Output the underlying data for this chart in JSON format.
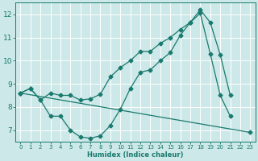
{
  "xlabel": "Humidex (Indice chaleur)",
  "bg_color": "#cce8e8",
  "grid_color": "#ffffff",
  "line_color": "#1a7a6e",
  "xlim": [
    -0.5,
    23.5
  ],
  "ylim": [
    6.5,
    12.5
  ],
  "yticks": [
    7,
    8,
    9,
    10,
    11,
    12
  ],
  "xticks": [
    0,
    1,
    2,
    3,
    4,
    5,
    6,
    7,
    8,
    9,
    10,
    11,
    12,
    13,
    14,
    15,
    16,
    17,
    18,
    19,
    20,
    21,
    22,
    23
  ],
  "line1_x": [
    0,
    1,
    2,
    3,
    4,
    5,
    6,
    7,
    8,
    9,
    10,
    11,
    12,
    13,
    14,
    15,
    16,
    17,
    18,
    19,
    20,
    21
  ],
  "line1_y": [
    8.6,
    8.8,
    8.3,
    7.6,
    7.6,
    7.0,
    6.7,
    6.65,
    6.75,
    7.2,
    7.9,
    8.8,
    9.5,
    9.6,
    10.0,
    10.35,
    11.1,
    11.65,
    12.05,
    10.3,
    8.5,
    7.6
  ],
  "line2_x": [
    0,
    1,
    2,
    3,
    4,
    5,
    6,
    7,
    8,
    9,
    10,
    11,
    12,
    13,
    14,
    15,
    16,
    17,
    18,
    19,
    20,
    21
  ],
  "line2_y": [
    8.6,
    8.8,
    8.3,
    8.6,
    8.5,
    8.5,
    8.3,
    8.35,
    8.55,
    9.3,
    9.7,
    10.0,
    10.4,
    10.4,
    10.75,
    11.0,
    11.35,
    11.65,
    12.2,
    11.65,
    10.25,
    8.5
  ],
  "line3_x": [
    0,
    23
  ],
  "line3_y": [
    8.6,
    6.9
  ]
}
